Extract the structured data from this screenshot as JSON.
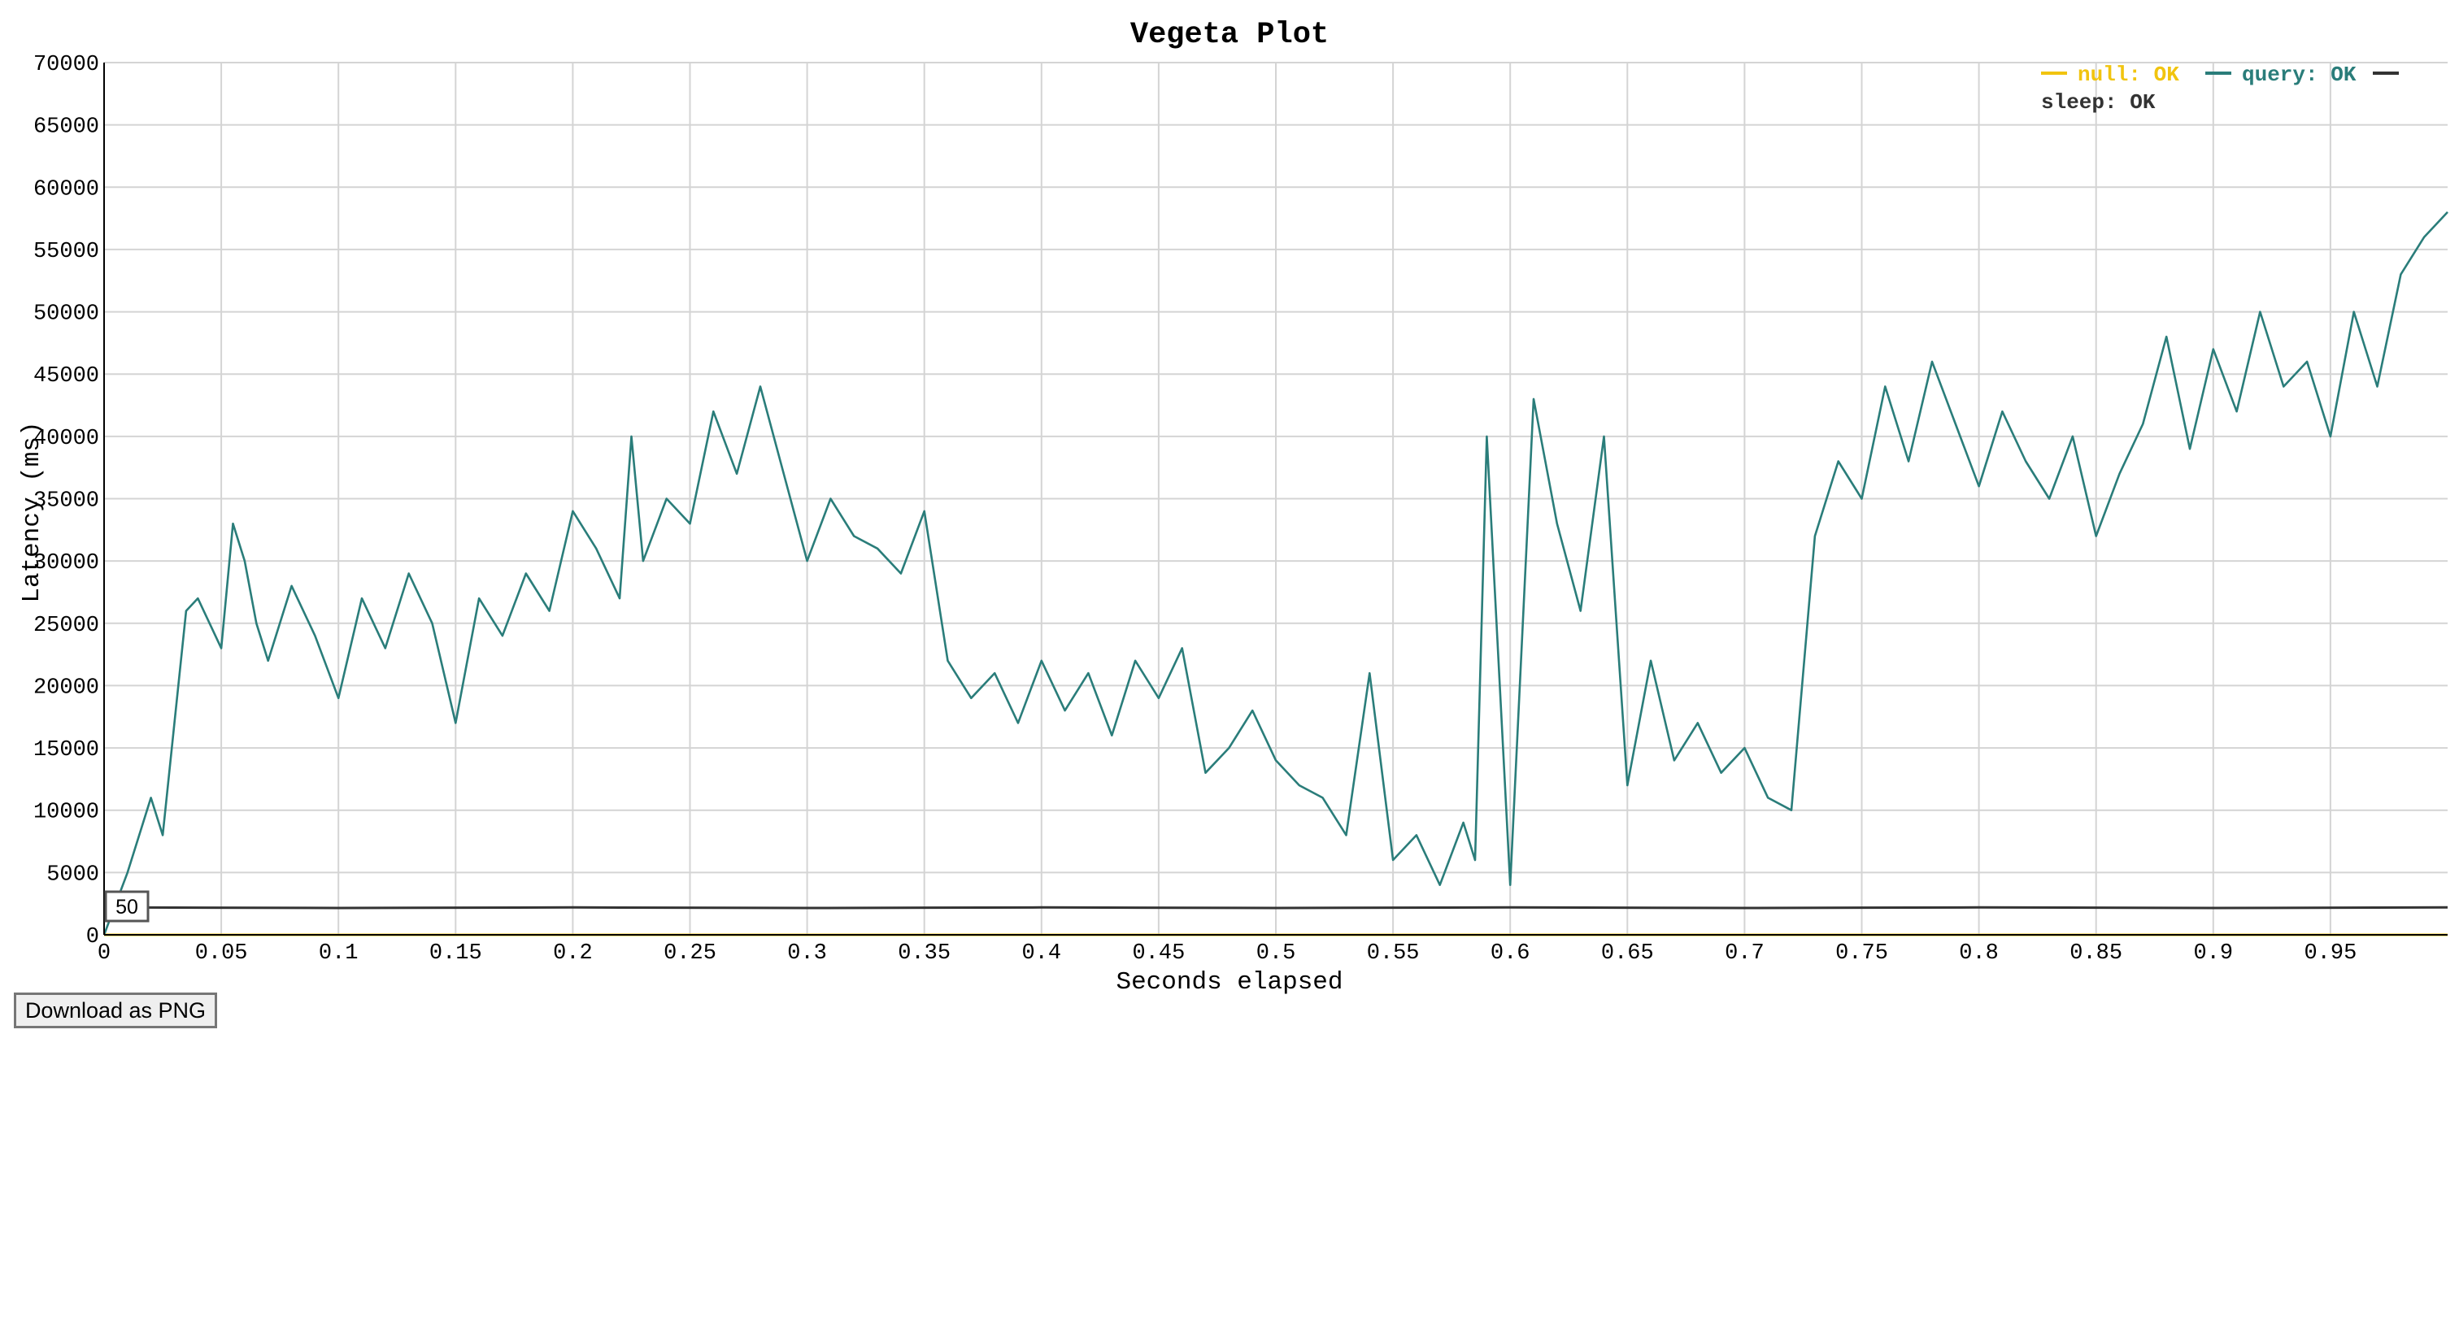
{
  "page": {
    "download_button_label": "Download as PNG"
  },
  "chart_data": {
    "type": "line",
    "title": "Vegeta Plot",
    "xlabel": "Seconds elapsed",
    "ylabel": "Latency (ms)",
    "xlim": [
      0,
      1.0
    ],
    "ylim": [
      0,
      70000
    ],
    "x_ticks": [
      "0",
      "0.05",
      "0.1",
      "0.15",
      "0.2",
      "0.25",
      "0.3",
      "0.35",
      "0.4",
      "0.45",
      "0.5",
      "0.55",
      "0.6",
      "0.65",
      "0.7",
      "0.75",
      "0.8",
      "0.85",
      "0.9",
      "0.95"
    ],
    "y_ticks": [
      "0",
      "5000",
      "10000",
      "15000",
      "20000",
      "25000",
      "30000",
      "35000",
      "40000",
      "45000",
      "50000",
      "55000",
      "60000",
      "65000",
      "70000"
    ],
    "grid": true,
    "legend_placement": "top-right",
    "range_box_label": "50",
    "series": [
      {
        "name": "null: OK",
        "color": "#f1c40f",
        "x": [
          0,
          1.0
        ],
        "y": [
          0,
          0
        ]
      },
      {
        "name": "query: OK",
        "color": "#2a7d7a",
        "x": [
          0,
          0.01,
          0.02,
          0.025,
          0.03,
          0.035,
          0.04,
          0.05,
          0.055,
          0.06,
          0.065,
          0.07,
          0.08,
          0.09,
          0.1,
          0.11,
          0.12,
          0.13,
          0.14,
          0.15,
          0.16,
          0.17,
          0.18,
          0.19,
          0.2,
          0.21,
          0.22,
          0.225,
          0.23,
          0.24,
          0.25,
          0.26,
          0.27,
          0.28,
          0.29,
          0.3,
          0.31,
          0.32,
          0.33,
          0.34,
          0.35,
          0.36,
          0.37,
          0.38,
          0.39,
          0.4,
          0.41,
          0.42,
          0.43,
          0.44,
          0.45,
          0.46,
          0.47,
          0.48,
          0.49,
          0.5,
          0.51,
          0.52,
          0.53,
          0.54,
          0.55,
          0.56,
          0.57,
          0.58,
          0.585,
          0.59,
          0.6,
          0.61,
          0.62,
          0.63,
          0.64,
          0.65,
          0.66,
          0.67,
          0.68,
          0.69,
          0.7,
          0.71,
          0.72,
          0.73,
          0.74,
          0.75,
          0.76,
          0.77,
          0.78,
          0.79,
          0.8,
          0.81,
          0.82,
          0.83,
          0.84,
          0.85,
          0.86,
          0.87,
          0.88,
          0.89,
          0.9,
          0.91,
          0.92,
          0.93,
          0.94,
          0.95,
          0.96,
          0.97,
          0.98,
          0.99,
          1.0
        ],
        "y": [
          0,
          5000,
          11000,
          8000,
          17000,
          26000,
          27000,
          23000,
          33000,
          30000,
          25000,
          22000,
          28000,
          24000,
          19000,
          27000,
          23000,
          29000,
          25000,
          17000,
          27000,
          24000,
          29000,
          26000,
          34000,
          31000,
          27000,
          40000,
          30000,
          35000,
          33000,
          42000,
          37000,
          44000,
          37000,
          30000,
          35000,
          32000,
          31000,
          29000,
          34000,
          22000,
          19000,
          21000,
          17000,
          22000,
          18000,
          21000,
          16000,
          22000,
          19000,
          23000,
          13000,
          15000,
          18000,
          14000,
          12000,
          11000,
          8000,
          21000,
          6000,
          8000,
          4000,
          9000,
          6000,
          40000,
          4000,
          43000,
          33000,
          26000,
          40000,
          12000,
          22000,
          14000,
          17000,
          13000,
          15000,
          11000,
          10000,
          32000,
          38000,
          35000,
          44000,
          38000,
          46000,
          41000,
          36000,
          42000,
          38000,
          35000,
          40000,
          32000,
          37000,
          41000,
          48000,
          39000,
          47000,
          42000,
          50000,
          44000,
          46000,
          40000,
          50000,
          44000,
          53000,
          56000,
          58000
        ]
      },
      {
        "name": "sleep: OK",
        "color": "#333333",
        "x": [
          0,
          0.1,
          0.2,
          0.3,
          0.4,
          0.5,
          0.6,
          0.7,
          0.8,
          0.9,
          1.0
        ],
        "y": [
          2200,
          2150,
          2200,
          2150,
          2200,
          2150,
          2200,
          2150,
          2200,
          2150,
          2200
        ]
      }
    ]
  }
}
